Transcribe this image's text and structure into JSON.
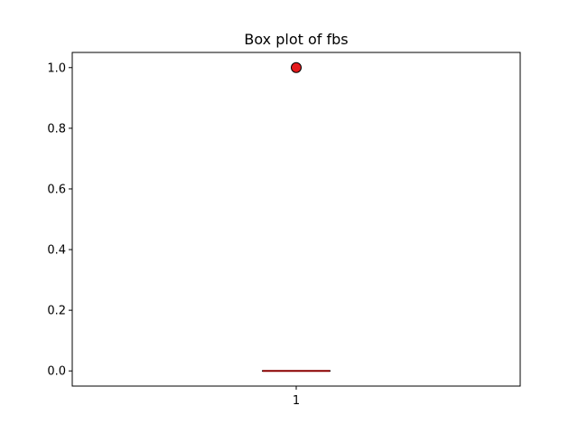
{
  "chart_data": {
    "type": "box",
    "title": "Box plot of fbs",
    "xlabel": "",
    "ylabel": "",
    "categories": [
      "1"
    ],
    "boxes": [
      {
        "category": "1",
        "q1": 0.0,
        "median": 0.0,
        "q3": 0.0,
        "whisker_low": 0.0,
        "whisker_high": 0.0,
        "outliers": [
          1.0
        ]
      }
    ],
    "ylim": [
      -0.05,
      1.05
    ],
    "yticks": [
      0.0,
      0.2,
      0.4,
      0.6,
      0.8,
      1.0
    ],
    "ytick_labels": [
      "0.0",
      "0.2",
      "0.4",
      "0.6",
      "0.8",
      "1.0"
    ],
    "grid": false,
    "colors": {
      "outlier_fill": "#e41a1c",
      "outlier_edge": "#000000",
      "box": "#000000",
      "median": "#8b0000"
    }
  }
}
